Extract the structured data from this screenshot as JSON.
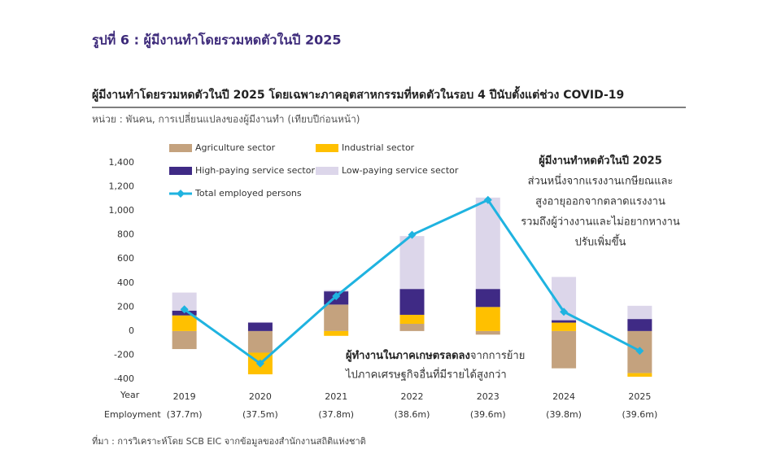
{
  "figure_title": "รูปที่ 6 : ผู้มีงานทำโดยรวมหดตัวในปี 2025",
  "chart_data": {
    "type": "bar",
    "title": "ผู้มีงานทำโดยรวมหดตัวในปี 2025 โดยเฉพาะภาคอุตสาหกรรมที่หดตัวในรอบ 4 ปีนับตั้งแต่ช่วง COVID-19",
    "subtitle": "หน่วย : พันคน, การเปลี่ยนแปลงของผู้มีงานทำ (เทียบปีก่อนหน้า)",
    "year_label": "Year",
    "categories": [
      "2019",
      "2020",
      "2021",
      "2022",
      "2023",
      "2024",
      "2025"
    ],
    "employment_label": "Employment",
    "employment": [
      "(37.7m)",
      "(37.5m)",
      "(37.8m)",
      "(38.6m)",
      "(39.6m)",
      "(39.8m)",
      "(39.6m)"
    ],
    "series": [
      {
        "name": "Agriculture sector",
        "color": "#c4a27e",
        "values": [
          -150,
          -180,
          220,
          60,
          -30,
          -310,
          -350
        ]
      },
      {
        "name": "Industrial sector",
        "color": "#ffc000",
        "values": [
          130,
          -180,
          -40,
          75,
          200,
          70,
          -30
        ]
      },
      {
        "name": "High-paying service sector",
        "color": "#3f2a85",
        "values": [
          40,
          70,
          110,
          215,
          150,
          20,
          100
        ]
      },
      {
        "name": "Low-paying service sector",
        "color": "#dcd6ea",
        "values": [
          150,
          5,
          10,
          440,
          760,
          360,
          110
        ]
      },
      {
        "name": "Total employed persons",
        "color": "#1fb3e0",
        "type": "line",
        "values": [
          180,
          -270,
          290,
          800,
          1090,
          160,
          -165
        ]
      }
    ],
    "ylim": [
      -400,
      1400
    ],
    "yticks": [
      -400,
      -200,
      0,
      200,
      400,
      600,
      800,
      {
        "value": 1000,
        "label": "1,000"
      },
      {
        "value": 1200,
        "label": "1,200"
      },
      {
        "value": 1400,
        "label": "1,400"
      }
    ],
    "annotations": [
      {
        "lines": [
          "ผู้มีงานทำหดตัวในปี 2025",
          "ส่วนหนึ่งจากแรงงานเกษียณและ",
          "สูงอายุออกจากตลาดแรงงาน",
          "รวมถึงผู้ว่างงานและไม่อยากหางาน",
          "ปรับเพิ่มขึ้น"
        ]
      },
      {
        "lines": [
          "ผู้ทำงานในภาคเกษตรลดลง",
          "จากการย้าย",
          "ไปภาคเศรษฐกิจอื่นที่มีรายได้สูงกว่า"
        ]
      }
    ]
  },
  "source": "ที่มา : การวิเคราะห์โดย SCB EIC จากข้อมูลของสำนักงานสถิติแห่งชาติ"
}
